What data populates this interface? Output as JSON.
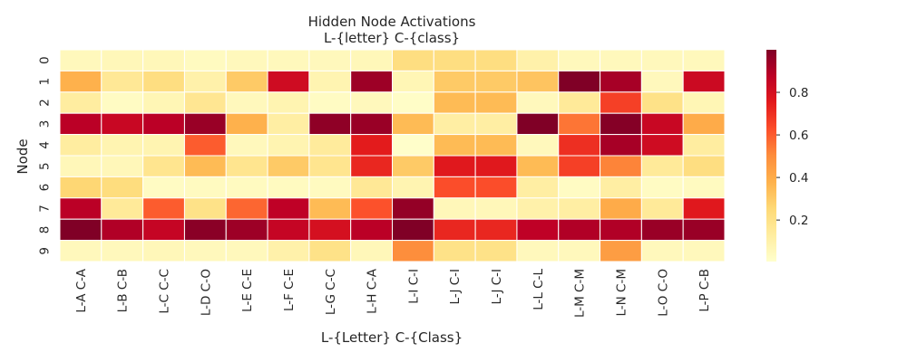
{
  "chart_data": {
    "type": "heatmap",
    "title": "Hidden Node Activations",
    "subtitle": "L-{letter} C-{class}",
    "xlabel": "L-{Letter} C-{Class}",
    "ylabel": "Node",
    "x_categories": [
      "L-A C-A",
      "L-B C-B",
      "L-C C-C",
      "L-D C-O",
      "L-E C-E",
      "L-F C-E",
      "L-G C-C",
      "L-H C-A",
      "L-I C-I",
      "L-J C-I",
      "L-J C-I",
      "L-L C-L",
      "L-M C-M",
      "L-N C-M",
      "L-O C-O",
      "L-P C-B"
    ],
    "y_categories": [
      "0",
      "1",
      "2",
      "3",
      "4",
      "5",
      "6",
      "7",
      "8",
      "9"
    ],
    "values": [
      [
        0.05,
        0.06,
        0.06,
        0.04,
        0.05,
        0.05,
        0.05,
        0.06,
        0.22,
        0.22,
        0.22,
        0.1,
        0.05,
        0.05,
        0.05,
        0.05
      ],
      [
        0.38,
        0.16,
        0.22,
        0.1,
        0.3,
        0.82,
        0.08,
        0.94,
        0.07,
        0.3,
        0.3,
        0.32,
        1.0,
        0.92,
        0.05,
        0.83
      ],
      [
        0.13,
        0.03,
        0.07,
        0.17,
        0.05,
        0.08,
        0.03,
        0.05,
        0.02,
        0.35,
        0.35,
        0.05,
        0.15,
        0.66,
        0.2,
        0.07
      ],
      [
        0.88,
        0.84,
        0.88,
        0.95,
        0.38,
        0.12,
        0.97,
        0.95,
        0.35,
        0.12,
        0.12,
        1.0,
        0.55,
        0.99,
        0.84,
        0.4
      ],
      [
        0.13,
        0.08,
        0.08,
        0.6,
        0.05,
        0.08,
        0.14,
        0.75,
        0.01,
        0.35,
        0.35,
        0.05,
        0.7,
        0.92,
        0.82,
        0.13
      ],
      [
        0.06,
        0.06,
        0.18,
        0.35,
        0.18,
        0.3,
        0.18,
        0.72,
        0.3,
        0.76,
        0.76,
        0.35,
        0.66,
        0.52,
        0.15,
        0.22
      ],
      [
        0.26,
        0.23,
        0.03,
        0.04,
        0.04,
        0.04,
        0.04,
        0.16,
        0.08,
        0.63,
        0.63,
        0.12,
        0.03,
        0.12,
        0.03,
        0.04
      ],
      [
        0.88,
        0.15,
        0.6,
        0.2,
        0.58,
        0.87,
        0.35,
        0.62,
        0.96,
        0.06,
        0.06,
        0.1,
        0.12,
        0.4,
        0.15,
        0.76
      ],
      [
        1.0,
        0.9,
        0.85,
        0.98,
        0.94,
        0.85,
        0.8,
        0.88,
        1.0,
        0.72,
        0.72,
        0.87,
        0.9,
        0.9,
        0.95,
        0.95
      ],
      [
        0.05,
        0.05,
        0.06,
        0.05,
        0.05,
        0.1,
        0.2,
        0.06,
        0.5,
        0.2,
        0.2,
        0.05,
        0.05,
        0.45,
        0.05,
        0.05
      ]
    ],
    "colorscale": "YlOrRd",
    "colorbar_ticks": [
      0.2,
      0.4,
      0.6,
      0.8
    ],
    "colorbar_range": [
      0.005,
      1.0
    ],
    "grid": false,
    "legend": "colorbar-right"
  }
}
